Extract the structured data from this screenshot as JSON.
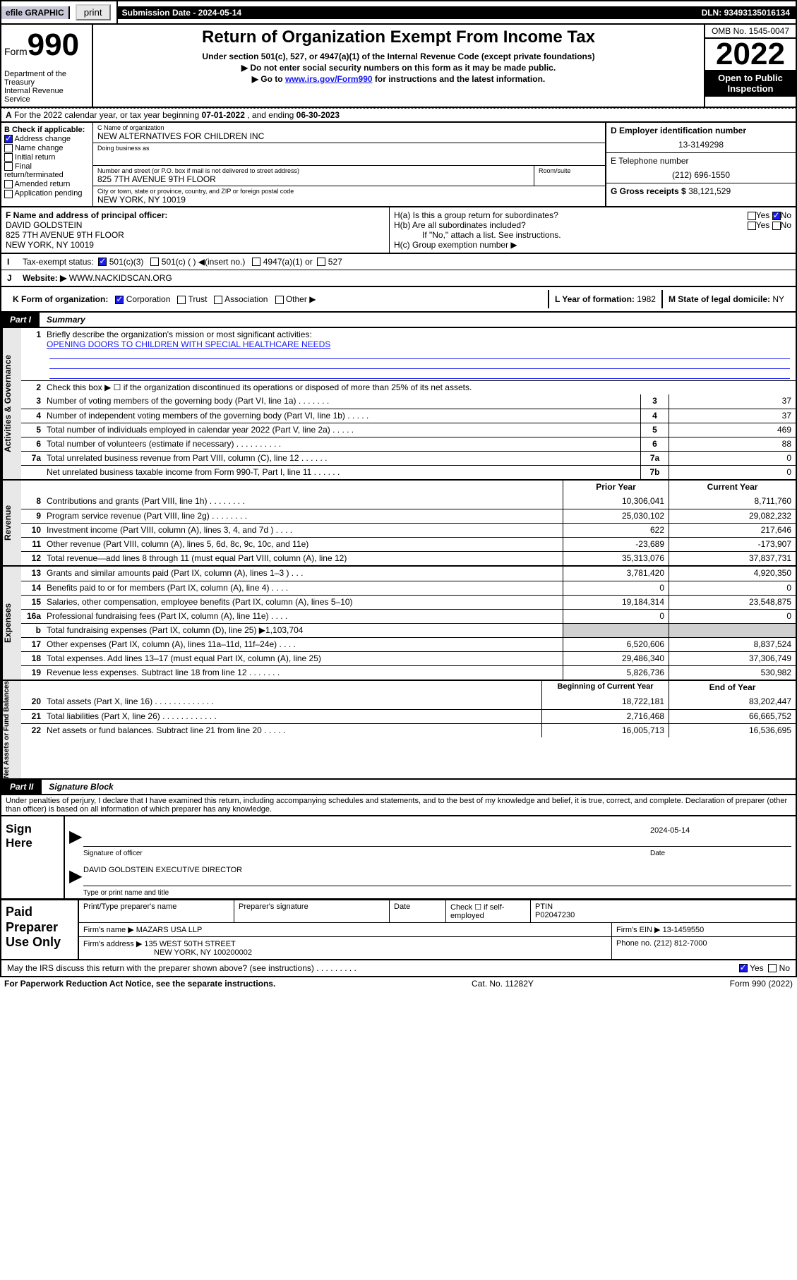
{
  "top": {
    "efile": "efile GRAPHIC",
    "print": "print",
    "subdate_lbl": "Submission Date - ",
    "subdate": "2024-05-14",
    "dln_lbl": "DLN: ",
    "dln": "93493135016134"
  },
  "header": {
    "form": "Form",
    "formno": "990",
    "title": "Return of Organization Exempt From Income Tax",
    "sub1": "Under section 501(c), 527, or 4947(a)(1) of the Internal Revenue Code (except private foundations)",
    "sub2": "▶ Do not enter social security numbers on this form as it may be made public.",
    "sub3_pre": "▶ Go to ",
    "sub3_link": "www.irs.gov/Form990",
    "sub3_post": " for instructions and the latest information.",
    "dept": "Department of the Treasury\nInternal Revenue Service",
    "omb": "OMB No. 1545-0047",
    "year": "2022",
    "inspect": "Open to Public Inspection"
  },
  "A": {
    "pre": "For the 2022 calendar year, or tax year beginning ",
    "beg": "07-01-2022",
    "mid": " , and ending ",
    "end": "06-30-2023"
  },
  "B": {
    "lbl": "B Check if applicable:",
    "items": [
      "Address change",
      "Name change",
      "Initial return",
      "Final return/terminated",
      "Amended return",
      "Application pending"
    ],
    "checked": [
      true,
      false,
      false,
      false,
      false,
      false
    ]
  },
  "C": {
    "name_lbl": "C Name of organization",
    "name": "NEW ALTERNATIVES FOR CHILDREN INC",
    "dba_lbl": "Doing business as",
    "dba": "",
    "addr_lbl": "Number and street (or P.O. box if mail is not delivered to street address)",
    "room_lbl": "Room/suite",
    "addr": "825 7TH AVENUE 9TH FLOOR",
    "city_lbl": "City or town, state or province, country, and ZIP or foreign postal code",
    "city": "NEW YORK, NY  10019"
  },
  "D": {
    "lbl": "D Employer identification number",
    "val": "13-3149298"
  },
  "E": {
    "lbl": "E Telephone number",
    "val": "(212) 696-1550"
  },
  "G": {
    "lbl": "G Gross receipts $ ",
    "val": "38,121,529"
  },
  "F": {
    "lbl": "F  Name and address of principal officer:",
    "name": "DAVID GOLDSTEIN",
    "addr1": "825 7TH AVENUE 9TH FLOOR",
    "addr2": "NEW YORK, NY  10019"
  },
  "H": {
    "a": "H(a)  Is this a group return for subordinates?",
    "a_yes": "Yes",
    "a_no": "No",
    "b": "H(b)  Are all subordinates included?",
    "note": "If \"No,\" attach a list. See instructions.",
    "c": "H(c)  Group exemption number ▶"
  },
  "I": {
    "lbl": "Tax-exempt status:",
    "opts": [
      "501(c)(3)",
      "501(c) (  ) ◀(insert no.)",
      "4947(a)(1) or",
      "527"
    ]
  },
  "J": {
    "lbl": "Website: ▶ ",
    "val": "WWW.NACKIDSCAN.ORG"
  },
  "K": {
    "lbl": "K Form of organization:",
    "opts": [
      "Corporation",
      "Trust",
      "Association",
      "Other ▶"
    ]
  },
  "L": {
    "lbl": "L Year of formation: ",
    "val": "1982"
  },
  "M": {
    "lbl": "M State of legal domicile: ",
    "val": "NY"
  },
  "partI": {
    "tag": "Part I",
    "txt": "Summary"
  },
  "s1": {
    "mission_lbl": "Briefly describe the organization's mission or most significant activities:",
    "mission": "OPENING DOORS TO CHILDREN WITH SPECIAL HEALTHCARE NEEDS",
    "l2": "Check this box ▶ ☐  if the organization discontinued its operations or disposed of more than 25% of its net assets.",
    "rows": [
      {
        "n": "3",
        "d": "Number of voting members of the governing body (Part VI, line 1a)  .    .    .    .    .    .    .",
        "c": "3",
        "v": "37"
      },
      {
        "n": "4",
        "d": "Number of independent voting members of the governing body (Part VI, line 1b)  .    .    .    .    .",
        "c": "4",
        "v": "37"
      },
      {
        "n": "5",
        "d": "Total number of individuals employed in calendar year 2022 (Part V, line 2a)  .    .    .    .    .",
        "c": "5",
        "v": "469"
      },
      {
        "n": "6",
        "d": "Total number of volunteers (estimate if necessary)  .    .    .    .    .    .    .    .    .    .",
        "c": "6",
        "v": "88"
      },
      {
        "n": "7a",
        "d": "Total unrelated business revenue from Part VIII, column (C), line 12  .    .    .    .    .    .",
        "c": "7a",
        "v": "0"
      },
      {
        "n": "",
        "d": "Net unrelated business taxable income from Form 990-T, Part I, line 11  .    .    .    .    .    .",
        "c": "7b",
        "v": "0"
      }
    ]
  },
  "s2": {
    "side": "Activities & Governance",
    "hdr_prior": "Prior Year",
    "hdr_curr": "Current Year",
    "side_rev": "Revenue",
    "rows_rev": [
      {
        "n": "8",
        "d": "Contributions and grants (Part VIII, line 1h)  .    .    .    .    .    .    .    .",
        "p": "10,306,041",
        "c": "8,711,760"
      },
      {
        "n": "9",
        "d": "Program service revenue (Part VIII, line 2g)  .    .    .    .    .    .    .    .",
        "p": "25,030,102",
        "c": "29,082,232"
      },
      {
        "n": "10",
        "d": "Investment income (Part VIII, column (A), lines 3, 4, and 7d )  .    .    .    .",
        "p": "622",
        "c": "217,646"
      },
      {
        "n": "11",
        "d": "Other revenue (Part VIII, column (A), lines 5, 6d, 8c, 9c, 10c, and 11e)",
        "p": "-23,689",
        "c": "-173,907"
      },
      {
        "n": "12",
        "d": "Total revenue—add lines 8 through 11 (must equal Part VIII, column (A), line 12)",
        "p": "35,313,076",
        "c": "37,837,731"
      }
    ],
    "side_exp": "Expenses",
    "rows_exp": [
      {
        "n": "13",
        "d": "Grants and similar amounts paid (Part IX, column (A), lines 1–3 )  .    .    .",
        "p": "3,781,420",
        "c": "4,920,350"
      },
      {
        "n": "14",
        "d": "Benefits paid to or for members (Part IX, column (A), line 4)  .    .    .    .",
        "p": "0",
        "c": "0"
      },
      {
        "n": "15",
        "d": "Salaries, other compensation, employee benefits (Part IX, column (A), lines 5–10)",
        "p": "19,184,314",
        "c": "23,548,875"
      },
      {
        "n": "16a",
        "d": "Professional fundraising fees (Part IX, column (A), line 11e)  .    .    .    .",
        "p": "0",
        "c": "0"
      },
      {
        "n": "b",
        "d": "Total fundraising expenses (Part IX, column (D), line 25) ▶1,103,704",
        "p": "",
        "c": "",
        "grey": true
      },
      {
        "n": "17",
        "d": "Other expenses (Part IX, column (A), lines 11a–11d, 11f–24e)  .    .    .    .",
        "p": "6,520,606",
        "c": "8,837,524"
      },
      {
        "n": "18",
        "d": "Total expenses. Add lines 13–17 (must equal Part IX, column (A), line 25)",
        "p": "29,486,340",
        "c": "37,306,749"
      },
      {
        "n": "19",
        "d": "Revenue less expenses. Subtract line 18 from line 12  .    .    .    .    .    .    .",
        "p": "5,826,736",
        "c": "530,982"
      }
    ],
    "side_net": "Net Assets or Fund Balances",
    "hdr_beg": "Beginning of Current Year",
    "hdr_end": "End of Year",
    "rows_net": [
      {
        "n": "20",
        "d": "Total assets (Part X, line 16)  .    .    .    .    .    .    .    .    .    .    .    .    .",
        "p": "18,722,181",
        "c": "83,202,447"
      },
      {
        "n": "21",
        "d": "Total liabilities (Part X, line 26)  .    .    .    .    .    .    .    .    .    .    .    .",
        "p": "2,716,468",
        "c": "66,665,752"
      },
      {
        "n": "22",
        "d": "Net assets or fund balances. Subtract line 21 from line 20  .    .    .    .    .",
        "p": "16,005,713",
        "c": "16,536,695"
      }
    ]
  },
  "partII": {
    "tag": "Part II",
    "txt": "Signature Block"
  },
  "sig": {
    "decl": "Under penalties of perjury, I declare that I have examined this return, including accompanying schedules and statements, and to the best of my knowledge and belief, it is true, correct, and complete. Declaration of preparer (other than officer) is based on all information of which preparer has any knowledge.",
    "sign_here": "Sign Here",
    "sig_off": "Signature of officer",
    "date_lbl": "Date",
    "date": "2024-05-14",
    "name": "DAVID GOLDSTEIN  EXECUTIVE DIRECTOR",
    "name_lbl": "Type or print name and title"
  },
  "prep": {
    "lbl": "Paid Preparer Use Only",
    "r1": {
      "c1": "Print/Type preparer's name",
      "c2": "Preparer's signature",
      "c3": "Date",
      "c4a": "Check ☐ if self-employed",
      "c5": "PTIN",
      "c5v": "P02047230"
    },
    "r2": {
      "c1": "Firm's name    ▶",
      "c1v": "MAZARS USA LLP",
      "c2": "Firm's EIN ▶",
      "c2v": "13-1459550"
    },
    "r3": {
      "c1": "Firm's address ▶",
      "c1v": "135 WEST 50TH STREET",
      "c1v2": "NEW YORK, NY  100200002",
      "c2": "Phone no. ",
      "c2v": "(212) 812-7000"
    }
  },
  "discuss": {
    "q": "May the IRS discuss this return with the preparer shown above? (see instructions)  .    .    .    .    .    .    .    .    .",
    "yes": "Yes",
    "no": "No"
  },
  "footer": {
    "l": "For Paperwork Reduction Act Notice, see the separate instructions.",
    "c": "Cat. No. 11282Y",
    "r": "Form 990 (2022)"
  }
}
